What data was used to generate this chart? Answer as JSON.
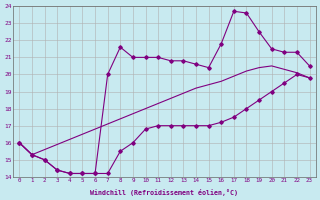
{
  "xlabel": "Windchill (Refroidissement éolien,°C)",
  "bg_color": "#c8eaf0",
  "line_color": "#800080",
  "grid_color": "#b0b0b0",
  "line1_x": [
    0,
    1,
    2,
    3,
    4,
    5,
    6,
    7,
    8,
    9,
    10,
    11,
    12,
    13,
    14,
    15,
    16,
    17,
    18,
    19,
    20,
    21,
    22,
    23
  ],
  "line1_y": [
    16.0,
    15.3,
    15.0,
    14.4,
    14.2,
    14.2,
    14.2,
    14.2,
    15.5,
    16.0,
    16.8,
    17.0,
    17.0,
    17.0,
    17.0,
    17.0,
    17.2,
    17.5,
    18.0,
    18.5,
    19.0,
    19.5,
    20.0,
    19.8
  ],
  "line2_x": [
    0,
    1,
    2,
    3,
    4,
    5,
    6,
    7,
    8,
    9,
    10,
    11,
    12,
    13,
    14,
    15,
    16,
    17,
    18,
    19,
    20,
    21,
    22,
    23
  ],
  "line2_y": [
    16.0,
    15.3,
    15.0,
    14.4,
    14.2,
    14.2,
    14.2,
    20.0,
    21.6,
    21.0,
    21.0,
    21.0,
    20.8,
    20.8,
    20.6,
    20.4,
    21.8,
    23.7,
    23.6,
    22.5,
    21.5,
    21.3,
    21.3,
    20.5
  ],
  "line3_x": [
    0,
    1,
    2,
    3,
    4,
    5,
    6,
    7,
    8,
    9,
    10,
    11,
    12,
    13,
    14,
    15,
    16,
    17,
    18,
    19,
    20,
    21,
    22,
    23
  ],
  "line3_y": [
    16.0,
    15.3,
    15.6,
    15.9,
    16.2,
    16.5,
    16.8,
    17.1,
    17.4,
    17.7,
    18.0,
    18.3,
    18.6,
    18.9,
    19.2,
    19.4,
    19.6,
    19.9,
    20.2,
    20.4,
    20.5,
    20.3,
    20.1,
    19.8
  ],
  "xlim": [
    -0.5,
    23.5
  ],
  "ylim": [
    14,
    24
  ],
  "yticks": [
    14,
    15,
    16,
    17,
    18,
    19,
    20,
    21,
    22,
    23,
    24
  ],
  "xticks": [
    0,
    1,
    2,
    3,
    4,
    5,
    6,
    7,
    8,
    9,
    10,
    11,
    12,
    13,
    14,
    15,
    16,
    17,
    18,
    19,
    20,
    21,
    22,
    23
  ]
}
